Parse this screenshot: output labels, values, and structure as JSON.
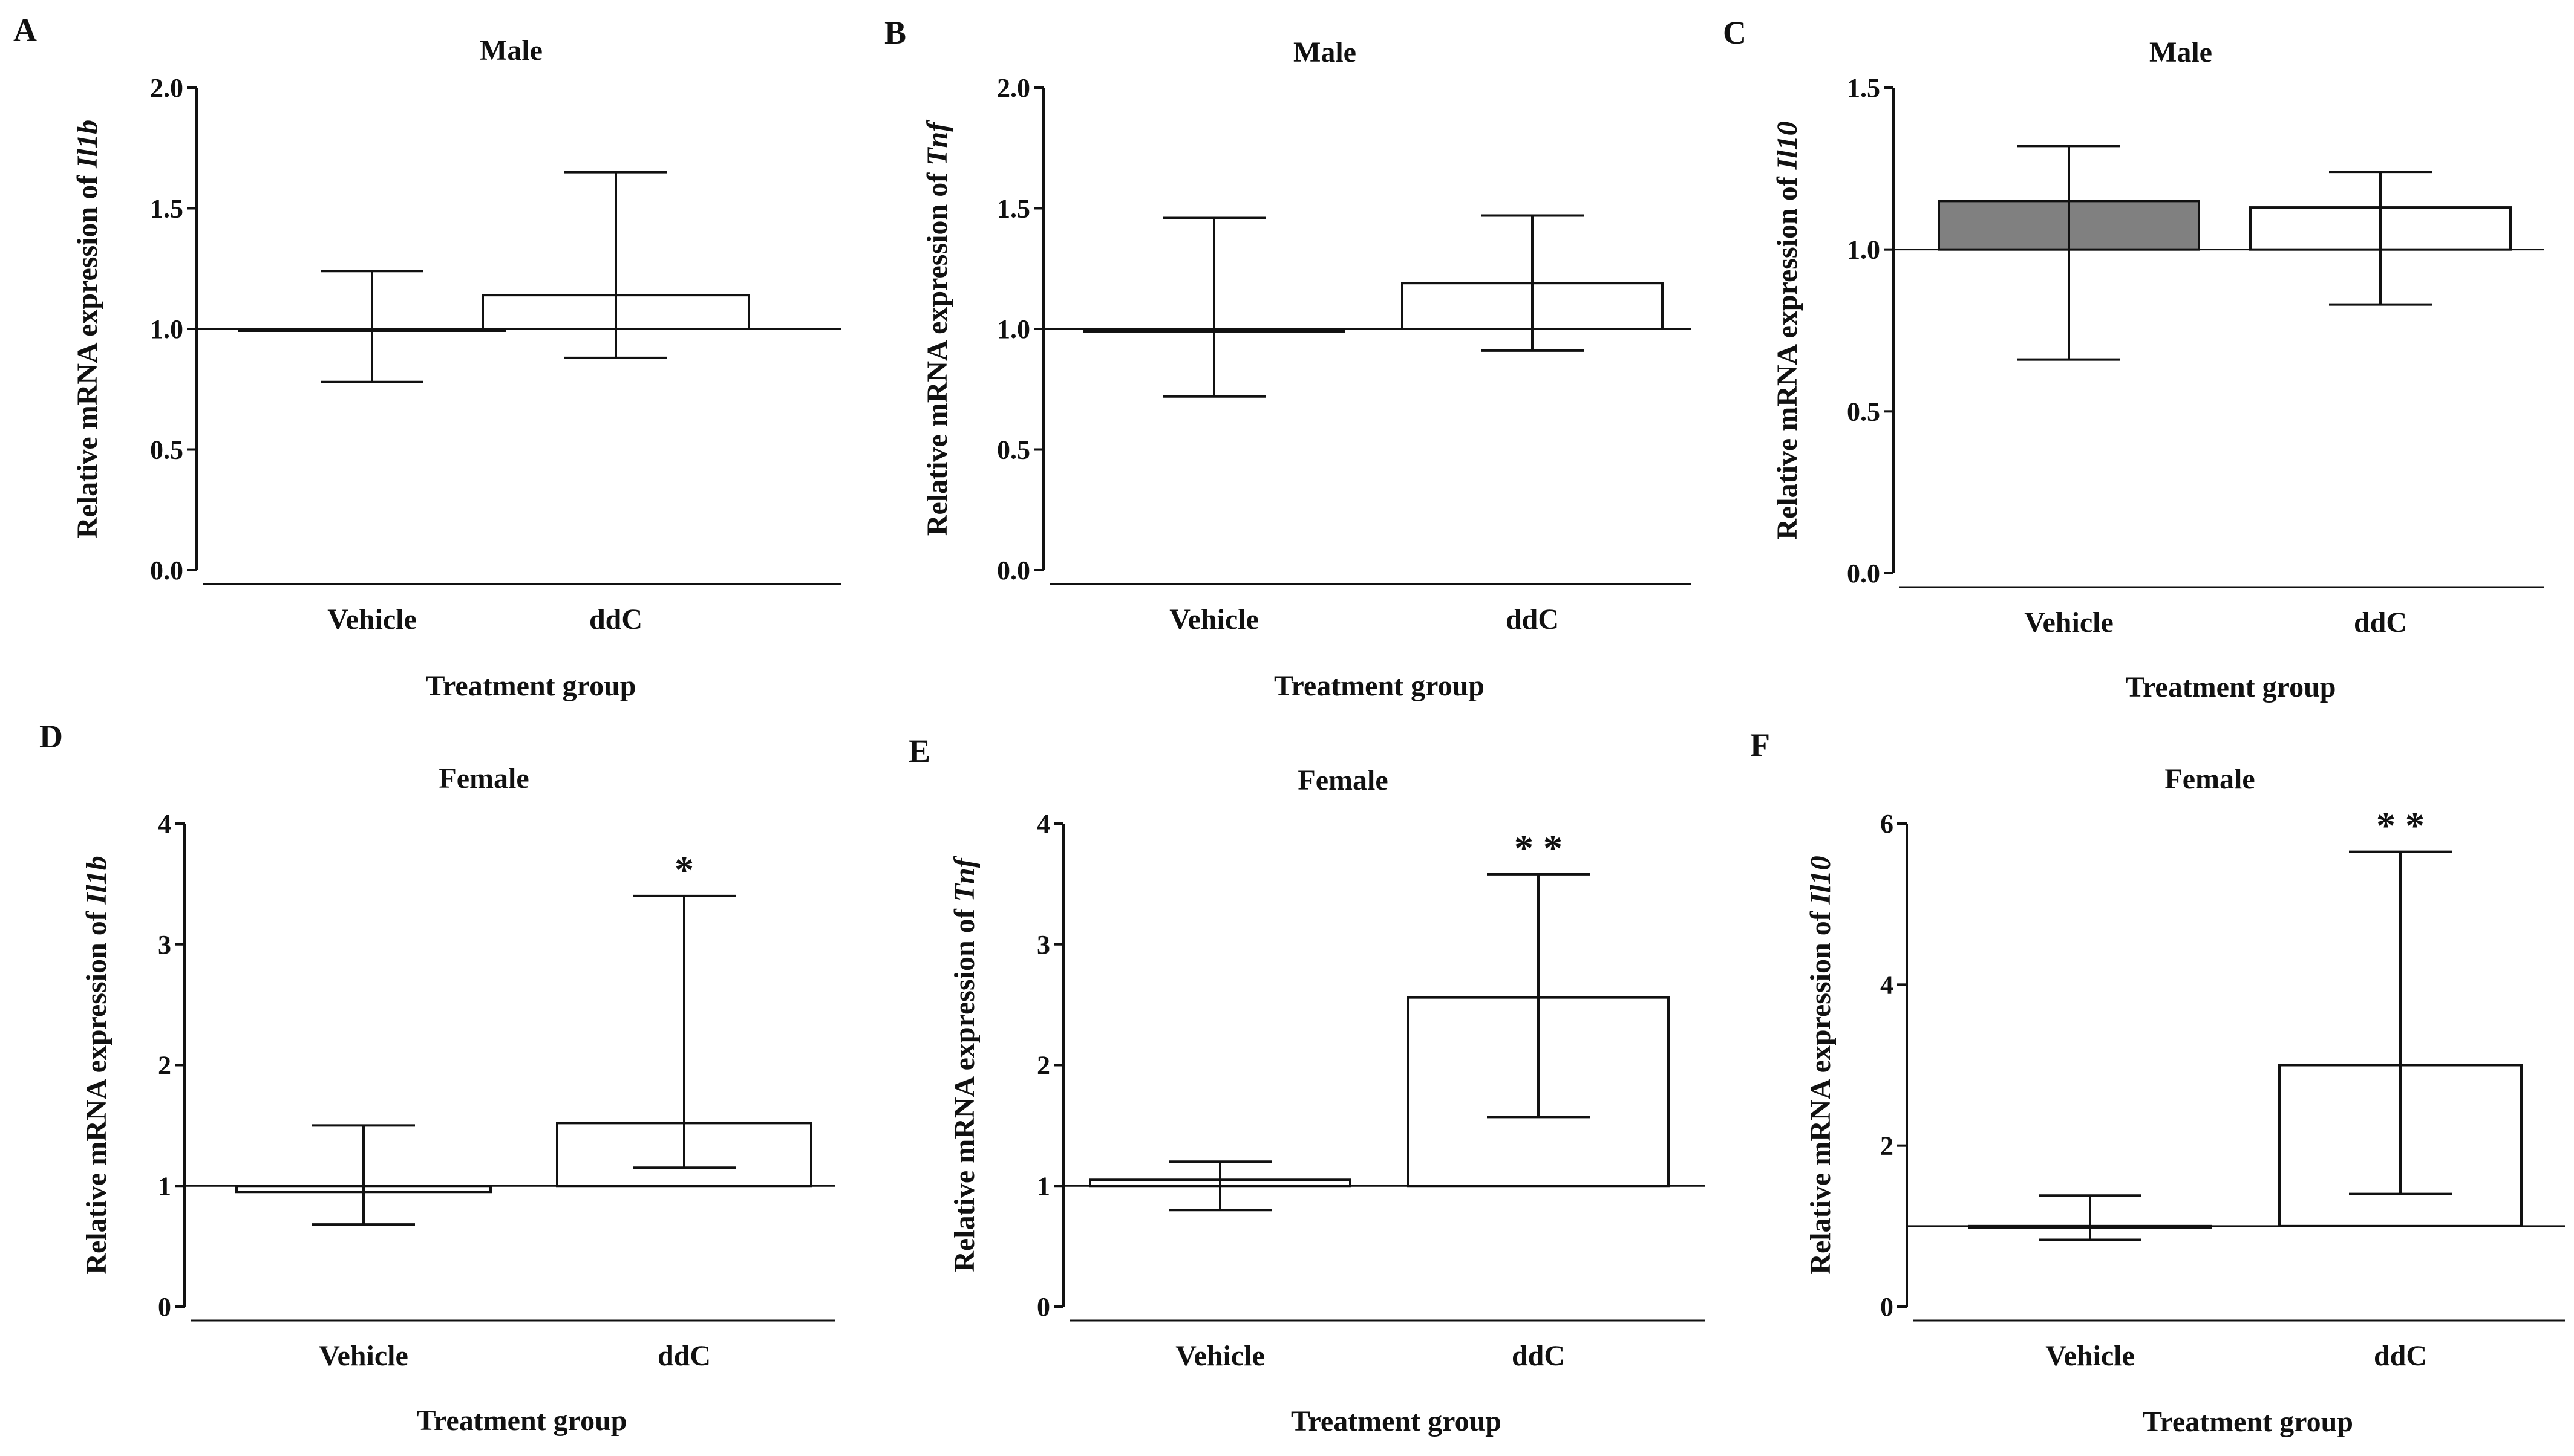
{
  "chart_data": [
    {
      "panel": "A",
      "type": "bar",
      "title": "Male",
      "ylabel_prefix": "Relative mRNA expression of ",
      "gene": "Il1b",
      "xlabel": "Treatment group",
      "categories": [
        "Vehicle",
        "ddC"
      ],
      "values": [
        1.0,
        1.14
      ],
      "error_low": [
        0.78,
        0.88
      ],
      "error_high": [
        1.24,
        1.65
      ],
      "fill_colors": [
        "#ffffff",
        "#ffffff"
      ],
      "significance": [
        "",
        ""
      ],
      "baseline": 1.0,
      "ylim": [
        0,
        2
      ],
      "yticks": [
        0,
        0.5,
        1,
        1.5,
        2
      ],
      "yticklabels": [
        "0.0",
        "0.5",
        "1.0",
        "1.5",
        "2.0"
      ]
    },
    {
      "panel": "B",
      "type": "bar",
      "title": "Male",
      "ylabel_prefix": "Relative mRNA expression of ",
      "gene": "Tnf",
      "xlabel": "Treatment group",
      "categories": [
        "Vehicle",
        "ddC"
      ],
      "values": [
        0.99,
        1.19
      ],
      "error_low": [
        0.72,
        0.91
      ],
      "error_high": [
        1.46,
        1.47
      ],
      "fill_colors": [
        "#ffffff",
        "#ffffff"
      ],
      "significance": [
        "",
        ""
      ],
      "baseline": 1.0,
      "ylim": [
        0,
        2
      ],
      "yticks": [
        0,
        0.5,
        1,
        1.5,
        2
      ],
      "yticklabels": [
        "0.0",
        "0.5",
        "1.0",
        "1.5",
        "2.0"
      ]
    },
    {
      "panel": "C",
      "type": "bar",
      "title": "Male",
      "ylabel_prefix": "Relative mRNA expression of ",
      "gene": "Il10",
      "xlabel": "Treatment group",
      "categories": [
        "Vehicle",
        "ddC"
      ],
      "values": [
        1.15,
        1.13
      ],
      "error_low": [
        0.66,
        0.83
      ],
      "error_high": [
        1.32,
        1.24
      ],
      "fill_colors": [
        "#808080",
        "#ffffff"
      ],
      "significance": [
        "",
        ""
      ],
      "baseline": 1.0,
      "ylim": [
        0,
        1.5
      ],
      "yticks": [
        0,
        0.5,
        1,
        1.5
      ],
      "yticklabels": [
        "0.0",
        "0.5",
        "1.0",
        "1.5"
      ]
    },
    {
      "panel": "D",
      "type": "bar",
      "title": "Female",
      "ylabel_prefix": "Relative mRNA expression of ",
      "gene": "Il1b",
      "xlabel": "Treatment group",
      "categories": [
        "Vehicle",
        "ddC"
      ],
      "values": [
        0.95,
        1.52
      ],
      "error_low": [
        0.68,
        1.15
      ],
      "error_high": [
        1.5,
        3.4
      ],
      "fill_colors": [
        "#ffffff",
        "#ffffff"
      ],
      "significance": [
        "",
        "*"
      ],
      "baseline": 1.0,
      "ylim": [
        0,
        4
      ],
      "yticks": [
        0,
        1,
        2,
        3,
        4
      ],
      "yticklabels": [
        "0",
        "1",
        "2",
        "3",
        "4"
      ]
    },
    {
      "panel": "E",
      "type": "bar",
      "title": "Female",
      "ylabel_prefix": "Relative mRNA expression of ",
      "gene": "Tnf",
      "xlabel": "Treatment group",
      "categories": [
        "Vehicle",
        "ddC"
      ],
      "values": [
        1.05,
        2.56
      ],
      "error_low": [
        0.8,
        1.57
      ],
      "error_high": [
        1.2,
        3.58
      ],
      "fill_colors": [
        "#ffffff",
        "#ffffff"
      ],
      "significance": [
        "",
        "* *"
      ],
      "baseline": 1.0,
      "ylim": [
        0,
        4
      ],
      "yticks": [
        0,
        1,
        2,
        3,
        4
      ],
      "yticklabels": [
        "0",
        "1",
        "2",
        "3",
        "4"
      ]
    },
    {
      "panel": "F",
      "type": "bar",
      "title": "Female",
      "ylabel_prefix": "Relative mRNA expression of ",
      "gene": "Il10",
      "xlabel": "Treatment group",
      "categories": [
        "Vehicle",
        "ddC"
      ],
      "values": [
        0.98,
        3.0
      ],
      "error_low": [
        0.83,
        1.4
      ],
      "error_high": [
        1.38,
        5.65
      ],
      "fill_colors": [
        "#ffffff",
        "#ffffff"
      ],
      "significance": [
        "",
        "* *"
      ],
      "baseline": 1.0,
      "ylim": [
        0,
        6
      ],
      "yticks": [
        0,
        2,
        4,
        6
      ],
      "yticklabels": [
        "0",
        "2",
        "4",
        "6"
      ]
    }
  ]
}
